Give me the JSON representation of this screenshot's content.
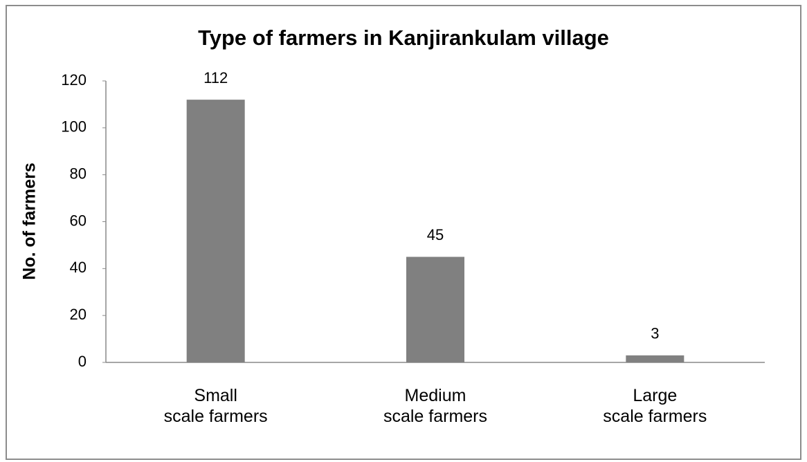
{
  "chart_data": {
    "type": "bar",
    "title": "Type of farmers in Kanjirankulam village",
    "y_label": "No. of farmers",
    "categories": [
      "Small\nscale farmers",
      "Medium\nscale farmers",
      "Large\nscale farmers"
    ],
    "values": [
      112,
      45,
      3
    ],
    "color": "#808080",
    "ylim": [
      0,
      120
    ],
    "yticks": [
      0,
      20,
      40,
      60,
      80,
      100,
      120
    ],
    "grid": false
  }
}
